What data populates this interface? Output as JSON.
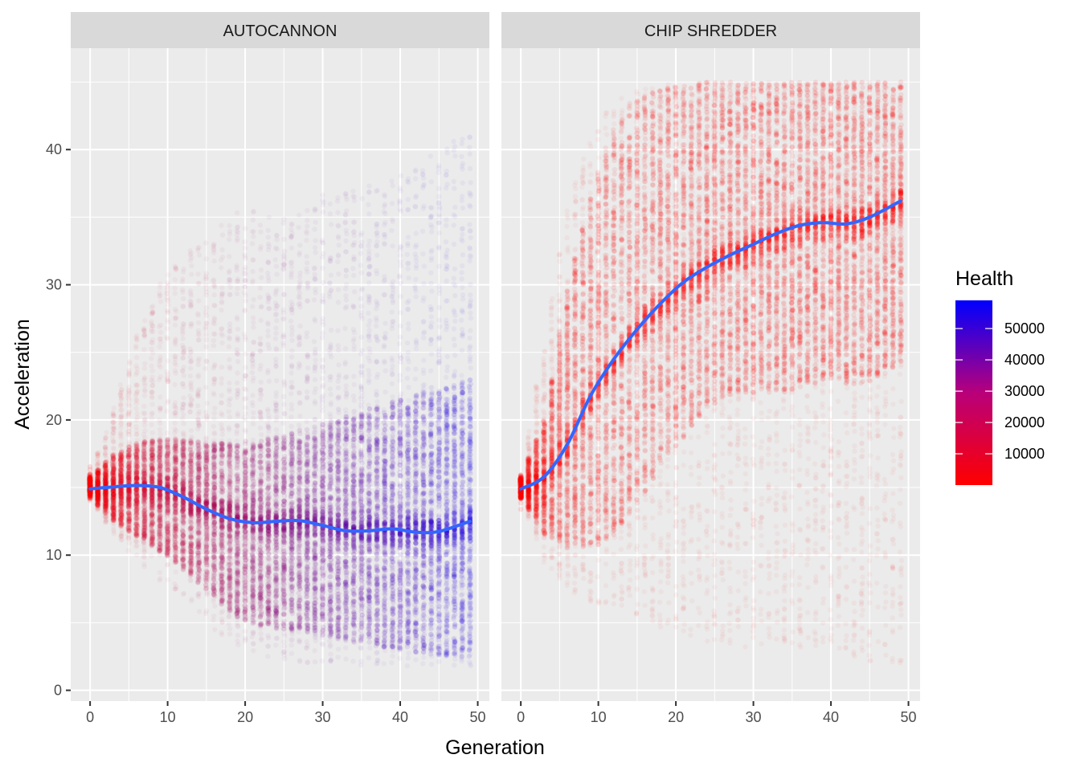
{
  "chart_data": {
    "type": "scatter",
    "xlabel": "Generation",
    "ylabel": "Acceleration",
    "xlim": [
      -2.5,
      51.5
    ],
    "ylim": [
      -0.8,
      47.5
    ],
    "x_ticks": [
      0,
      10,
      20,
      30,
      40,
      50
    ],
    "y_ticks": [
      0,
      10,
      20,
      30,
      40
    ],
    "grid": true,
    "legend": {
      "title": "Health",
      "placement": "right",
      "ticks": [
        10000,
        20000,
        30000,
        40000,
        50000
      ],
      "range": [
        0,
        59000
      ],
      "low_color": "#ff0000",
      "high_color": "#0000ff"
    },
    "smooth_color": "#3366ff",
    "panels": [
      {
        "strip": "AUTOCANNON",
        "generations": 50,
        "smooth": {
          "x": [
            0,
            3,
            6,
            9,
            12,
            15,
            18,
            21,
            24,
            27,
            30,
            33,
            36,
            39,
            42,
            45,
            49
          ],
          "y": [
            14.9,
            15.05,
            15.15,
            15.0,
            14.3,
            13.4,
            12.7,
            12.4,
            12.5,
            12.55,
            12.2,
            11.8,
            11.8,
            11.95,
            11.7,
            11.75,
            12.5
          ]
        },
        "cloud": {
          "center": [
            14.9,
            15.0,
            15.0,
            14.8,
            14.2,
            13.5,
            12.8,
            12.5,
            12.5,
            12.5,
            12.2,
            11.9,
            11.9,
            11.9,
            11.7,
            11.7,
            12.3
          ],
          "dense_lower": [
            14.2,
            12.5,
            11.3,
            10.2,
            8.8,
            7.3,
            5.6,
            4.8,
            4.5,
            4.3,
            4.0,
            3.6,
            3.3,
            3.0,
            2.7,
            2.5,
            2.4
          ],
          "dense_upper": [
            15.8,
            17.5,
            18.3,
            18.6,
            18.5,
            18.4,
            18.2,
            18.4,
            18.8,
            19.3,
            19.8,
            20.4,
            21.0,
            21.5,
            22.0,
            22.5,
            23.0
          ],
          "sparse_lower": [
            14.0,
            11.5,
            9.5,
            8.0,
            6.5,
            4.5,
            3.2,
            2.5,
            2.2,
            2.0,
            1.9,
            1.9,
            1.8,
            1.8,
            1.8,
            1.8,
            1.8
          ],
          "sparse_upper": [
            16.0,
            21.0,
            26.5,
            30.5,
            32.5,
            33.5,
            35.5,
            35.5,
            35.0,
            35.5,
            37.0,
            37.0,
            37.5,
            38.0,
            39.0,
            40.5,
            41.0
          ],
          "health_start": 0.0,
          "health_end": 0.9
        }
      },
      {
        "strip": "CHIP SHREDDER",
        "generations": 50,
        "smooth": {
          "x": [
            0,
            3,
            6,
            9,
            12,
            15,
            18,
            21,
            24,
            27,
            30,
            33,
            36,
            39,
            42,
            45,
            49
          ],
          "y": [
            14.9,
            15.8,
            18.2,
            21.8,
            24.5,
            26.7,
            28.6,
            30.2,
            31.3,
            32.2,
            33.0,
            33.8,
            34.4,
            34.6,
            34.5,
            35.0,
            36.2
          ]
        },
        "cloud": {
          "center": [
            14.9,
            15.8,
            18.2,
            21.8,
            24.5,
            26.7,
            28.6,
            30.2,
            31.3,
            32.2,
            33.0,
            33.8,
            34.4,
            34.6,
            34.5,
            35.0,
            36.2
          ],
          "dense_lower": [
            14.2,
            11.5,
            10.5,
            10.5,
            11.5,
            14.0,
            17.0,
            19.0,
            21.0,
            22.0,
            22.0,
            22.0,
            22.5,
            23.0,
            22.5,
            23.0,
            24.0
          ],
          "dense_upper": [
            15.8,
            20.0,
            30.0,
            37.0,
            42.0,
            44.0,
            44.5,
            44.8,
            45.0,
            45.0,
            45.0,
            45.0,
            45.0,
            45.0,
            45.0,
            45.0,
            45.0
          ],
          "sparse_lower": [
            14.0,
            9.0,
            7.5,
            6.5,
            5.5,
            5.0,
            4.5,
            4.0,
            3.5,
            3.0,
            3.0,
            3.0,
            3.0,
            3.0,
            2.5,
            2.0,
            2.0
          ],
          "sparse_upper": [
            16.0,
            26.0,
            36.0,
            41.5,
            44.0,
            44.5,
            44.8,
            45.0,
            45.0,
            45.0,
            45.0,
            45.0,
            45.0,
            45.0,
            45.0,
            45.0,
            45.0
          ],
          "health_start": 0.0,
          "health_end": 0.0
        }
      }
    ]
  }
}
